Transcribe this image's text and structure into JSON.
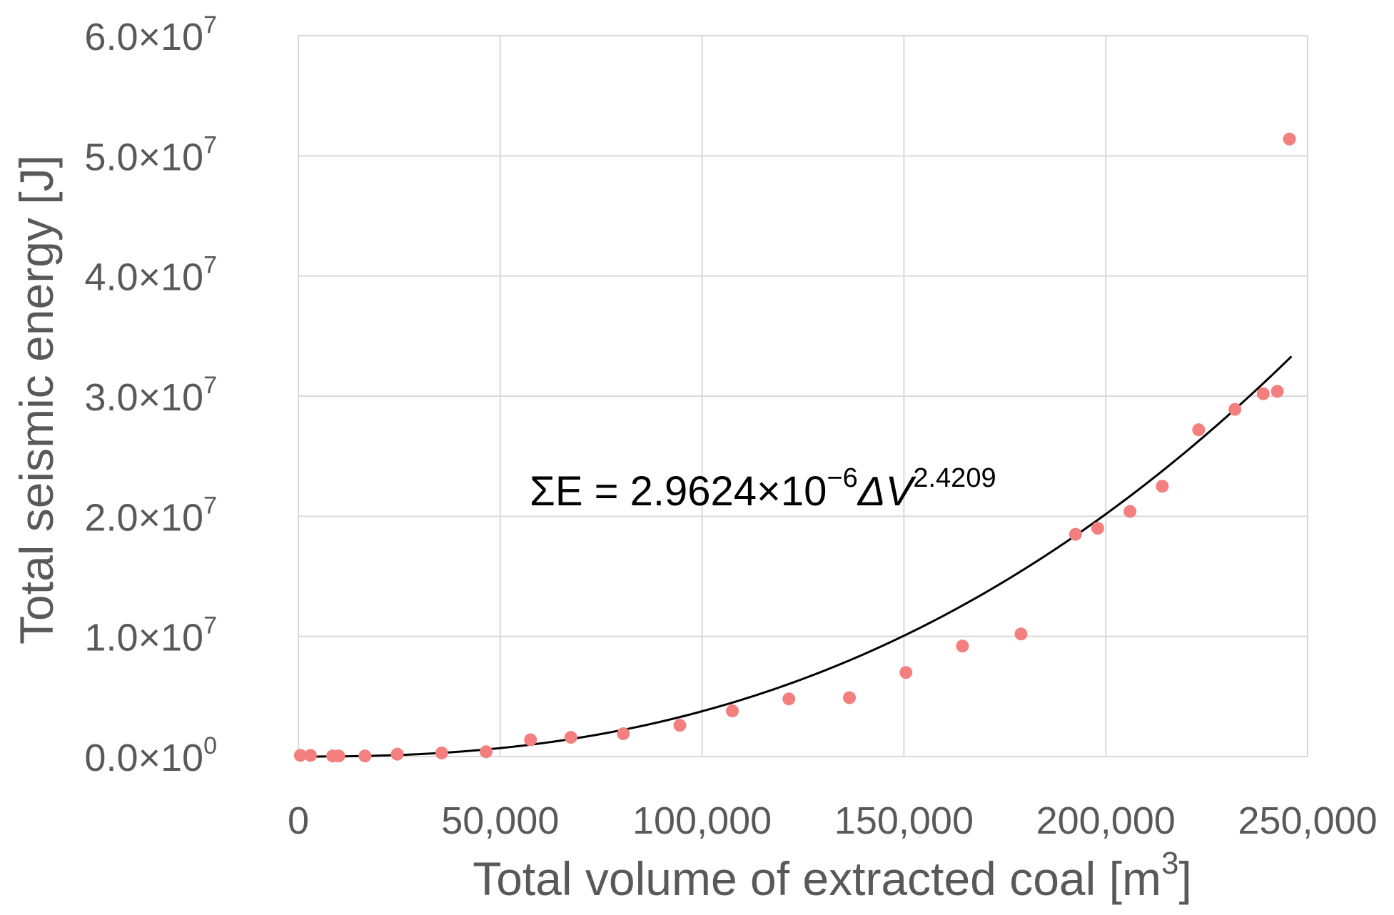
{
  "chart_data": {
    "type": "scatter",
    "xlabel": "Total volume of extracted coal [m",
    "xlabel_sup": "3",
    "xlabel_suffix": "]",
    "ylabel": "Total seismic energy [J]",
    "xlim": [
      0,
      250000
    ],
    "ylim": [
      0,
      60000000
    ],
    "grid": true,
    "x_ticks": [
      {
        "value": 0,
        "label": "0"
      },
      {
        "value": 50000,
        "label": "50,000"
      },
      {
        "value": 100000,
        "label": "100,000"
      },
      {
        "value": 150000,
        "label": "150,000"
      },
      {
        "value": 200000,
        "label": "200,000"
      },
      {
        "value": 250000,
        "label": "250,000"
      }
    ],
    "y_ticks": [
      {
        "value": 0,
        "mantissa": "0.0×10",
        "exp": "0"
      },
      {
        "value": 10000000,
        "mantissa": "1.0×10",
        "exp": "7"
      },
      {
        "value": 20000000,
        "mantissa": "2.0×10",
        "exp": "7"
      },
      {
        "value": 30000000,
        "mantissa": "3.0×10",
        "exp": "7"
      },
      {
        "value": 40000000,
        "mantissa": "4.0×10",
        "exp": "7"
      },
      {
        "value": 50000000,
        "mantissa": "5.0×10",
        "exp": "7"
      },
      {
        "value": 60000000,
        "mantissa": "6.0×10",
        "exp": "7"
      }
    ],
    "series": [
      {
        "marker_color": "#f47f7f",
        "x": [
          500,
          3000,
          8500,
          10000,
          16500,
          24500,
          35500,
          46500,
          57500,
          67500,
          80500,
          94500,
          107500,
          121500,
          136500,
          150500,
          164500,
          179000,
          192500,
          198000,
          206000,
          214000,
          223000,
          232000,
          239000,
          242500,
          245500
        ],
        "y": [
          100000,
          100000,
          50000,
          50000,
          50000,
          200000,
          300000,
          400000,
          1400000,
          1600000,
          1900000,
          2600000,
          3800000,
          4800000,
          4900000,
          7000000,
          9200000,
          10200000,
          18500000,
          19000000,
          20400000,
          22500000,
          27200000,
          28900000,
          30200000,
          30400000,
          51400000
        ]
      }
    ],
    "trendline": {
      "color": "#000000",
      "coefficient": 2.9624e-06,
      "exponent": 2.4209,
      "x_range": [
        0,
        246000
      ],
      "equation": {
        "lhs": "ΣE = 2.9624×10",
        "exp1": "−6",
        "mid": "ΔV",
        "exp2": "2.4209"
      }
    }
  }
}
